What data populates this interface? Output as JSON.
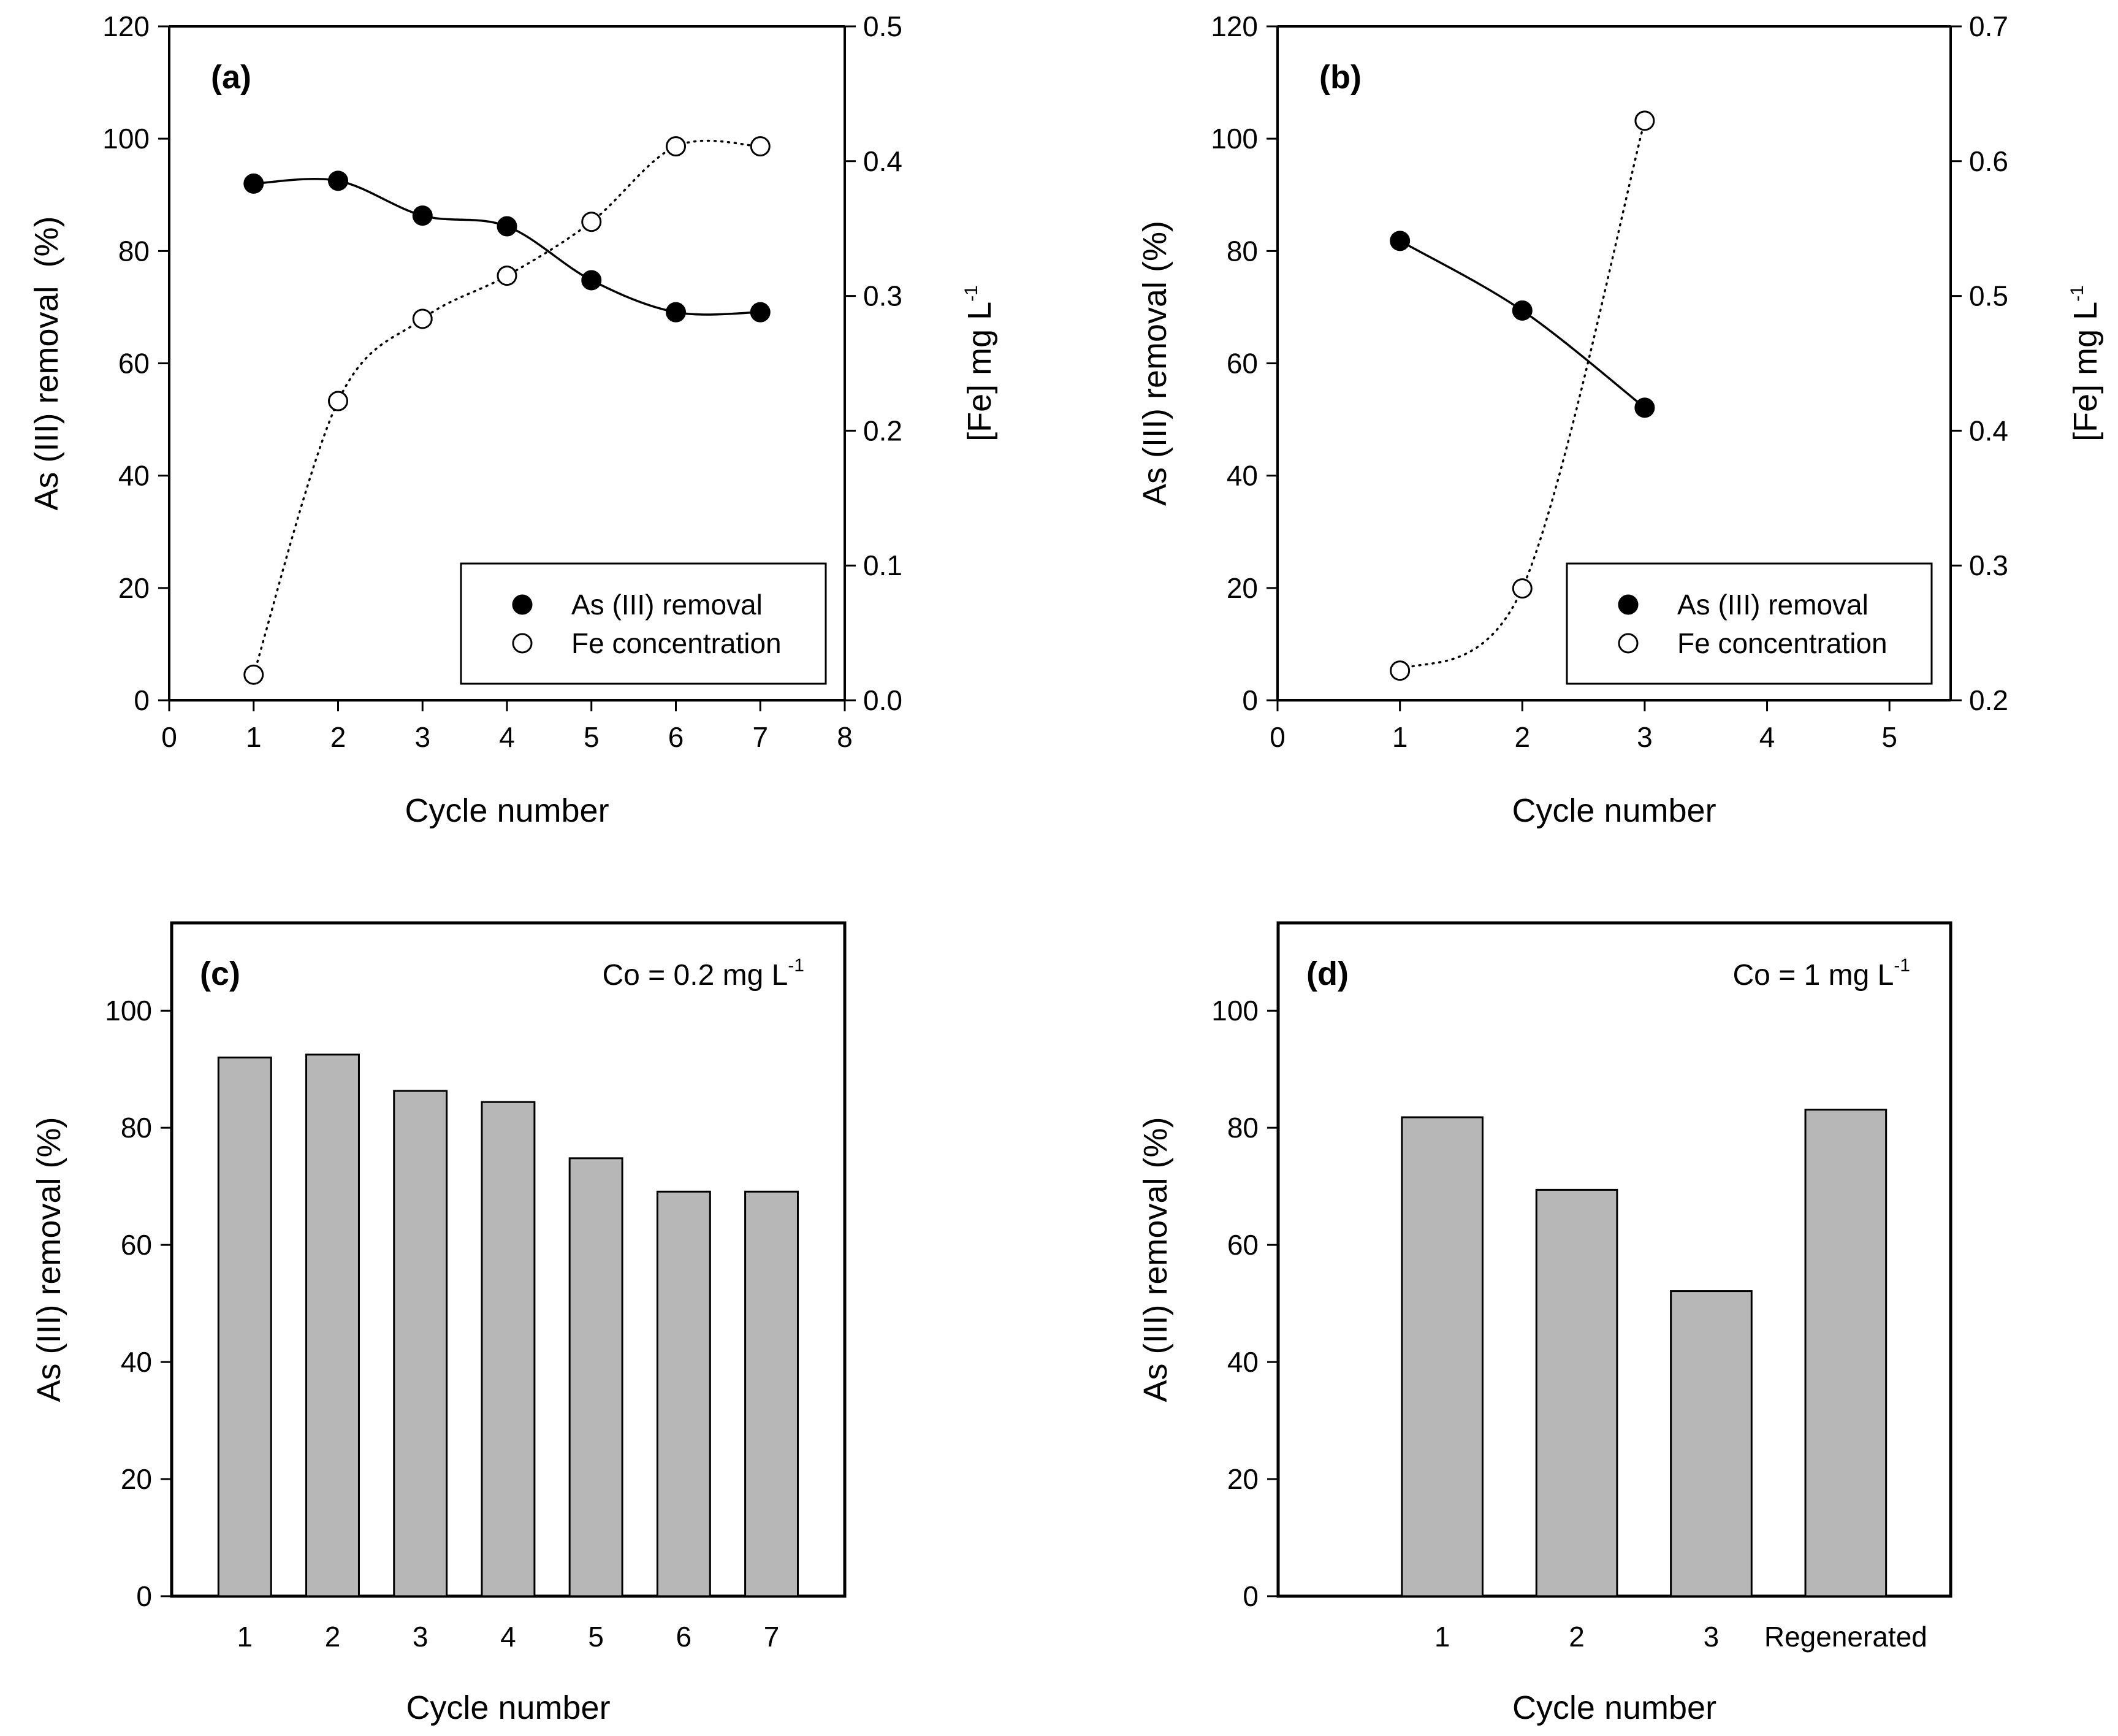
{
  "chart_data": [
    {
      "id": "a",
      "type": "line",
      "panel_label": "(a)",
      "xlabel": "Cycle number",
      "ylabel": "As (III) removal  (%)",
      "y2label": "[Fe] mg L",
      "y2label_sup": "-1",
      "xlim": [
        0,
        8
      ],
      "xticks": [
        "0",
        "1",
        "2",
        "3",
        "4",
        "5",
        "6",
        "7",
        "8"
      ],
      "ylim": [
        0,
        120
      ],
      "yticks": [
        "0",
        "20",
        "40",
        "60",
        "80",
        "100",
        "120"
      ],
      "y2lim": [
        0.0,
        0.5
      ],
      "y2ticks": [
        "0.0",
        "0.1",
        "0.2",
        "0.3",
        "0.4",
        "0.5"
      ],
      "legend_position": "bottom-right",
      "series": [
        {
          "name": "As (III) removal",
          "marker": "filled-circle",
          "line": "solid",
          "axis": "left",
          "x": [
            1,
            2,
            3,
            4,
            5,
            6,
            7
          ],
          "values": [
            92,
            92.5,
            86.3,
            84.4,
            74.8,
            69.1,
            69.1
          ]
        },
        {
          "name": "Fe concentration",
          "marker": "open-circle",
          "line": "dotted",
          "axis": "right",
          "x": [
            1,
            2,
            3,
            4,
            5,
            6,
            7
          ],
          "values": [
            0.019,
            0.222,
            0.283,
            0.315,
            0.355,
            0.411,
            0.411
          ]
        }
      ]
    },
    {
      "id": "b",
      "type": "line",
      "panel_label": "(b)",
      "xlabel": "Cycle number",
      "ylabel": "As (III) removal (%)",
      "y2label": "[Fe] mg L",
      "y2label_sup": "-1",
      "xlim": [
        0,
        5.5
      ],
      "xticks": [
        "0",
        "1",
        "2",
        "3",
        "4",
        "5"
      ],
      "ylim": [
        0,
        120
      ],
      "yticks": [
        "0",
        "20",
        "40",
        "60",
        "80",
        "100",
        "120"
      ],
      "y2lim": [
        0.2,
        0.7
      ],
      "y2ticks": [
        "0.2",
        "0.3",
        "0.4",
        "0.5",
        "0.6",
        "0.7"
      ],
      "legend_position": "bottom-right",
      "series": [
        {
          "name": "As (III) removal",
          "marker": "filled-circle",
          "line": "solid",
          "axis": "left",
          "x": [
            1,
            2,
            3
          ],
          "values": [
            81.8,
            69.4,
            52.1
          ]
        },
        {
          "name": "Fe concentration",
          "marker": "open-circle",
          "line": "dotted",
          "axis": "right",
          "x": [
            1,
            2,
            3
          ],
          "values": [
            0.222,
            0.283,
            0.63
          ]
        }
      ]
    },
    {
      "id": "c",
      "type": "bar",
      "panel_label": "(c)",
      "annotation": "Co = 0.2 mg L",
      "annotation_sup": "-1",
      "xlabel": "Cycle number",
      "ylabel": "As (III) removal (%)",
      "ylim": [
        0,
        115
      ],
      "yticks": [
        "0",
        "20",
        "40",
        "60",
        "80",
        "100"
      ],
      "categories": [
        "1",
        "2",
        "3",
        "4",
        "5",
        "6",
        "7"
      ],
      "values": [
        92,
        92.5,
        86.3,
        84.4,
        74.8,
        69.1,
        69.1
      ]
    },
    {
      "id": "d",
      "type": "bar",
      "panel_label": "(d)",
      "annotation": "Co = 1 mg L",
      "annotation_sup": "-1",
      "xlabel": "Cycle number",
      "ylabel": "As (III) removal (%)",
      "ylim": [
        0,
        115
      ],
      "yticks": [
        "0",
        "20",
        "40",
        "60",
        "80",
        "100"
      ],
      "categories": [
        "1",
        "2",
        "3",
        "Regenerated"
      ],
      "values": [
        81.8,
        69.4,
        52.1,
        83.1
      ]
    }
  ]
}
